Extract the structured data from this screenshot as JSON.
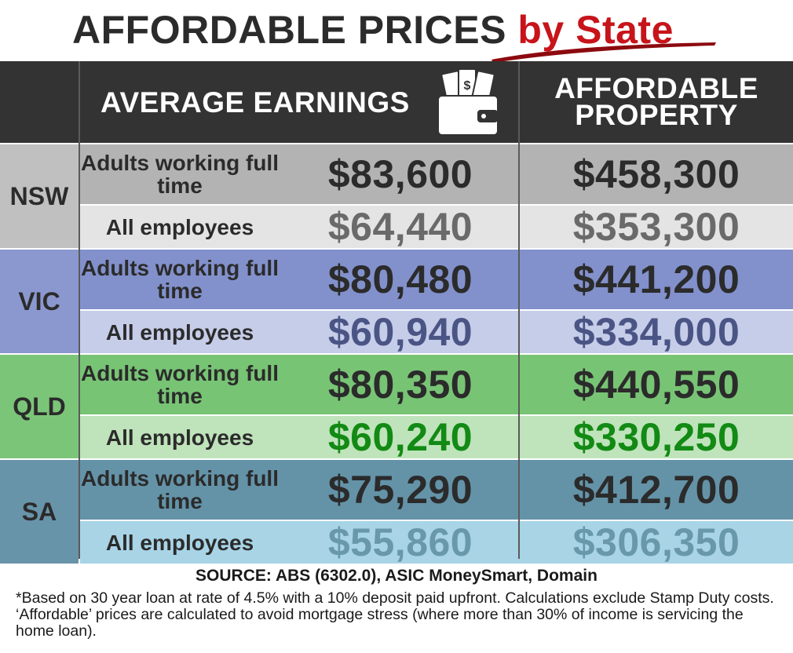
{
  "title": {
    "main": "AFFORDABLE PRICES",
    "accent": "by State"
  },
  "headers": {
    "earnings": "AVERAGE EARNINGS",
    "property": "AFFORDABLE PROPERTY"
  },
  "colors": {
    "title_text": "#2b2b2b",
    "title_accent": "#c7141a",
    "header_bg": "#333333",
    "NSW": {
      "state_bg": "#c0c0c0",
      "dark": "#b3b3b3",
      "light": "#e4e4e4",
      "dark_text": "#2b2b2b",
      "light_text": "#6a6a6a"
    },
    "VIC": {
      "state_bg": "#8b98cf",
      "dark": "#8291cc",
      "light": "#c6cde9",
      "dark_text": "#2b2b2b",
      "light_text": "#4a5585"
    },
    "QLD": {
      "state_bg": "#7bc579",
      "dark": "#78c475",
      "light": "#bfe3bb",
      "dark_text": "#2b2b2b",
      "light_text": "#128a14"
    },
    "SA": {
      "state_bg": "#6894aa",
      "dark": "#6493a8",
      "light": "#a8d4e6",
      "dark_text": "#2b2b2b",
      "light_text": "#6898aa"
    }
  },
  "chart_data": {
    "type": "table",
    "columns": [
      "AVERAGE EARNINGS",
      "AFFORDABLE PROPERTY"
    ],
    "rows": [
      {
        "state": "NSW",
        "items": [
          {
            "label": "Adults working full time",
            "earnings": "$83,600",
            "property": "$458,300"
          },
          {
            "label": "All employees",
            "earnings": "$64,440",
            "property": "$353,300"
          }
        ]
      },
      {
        "state": "VIC",
        "items": [
          {
            "label": "Adults working full time",
            "earnings": "$80,480",
            "property": "$441,200"
          },
          {
            "label": "All employees",
            "earnings": "$60,940",
            "property": "$334,000"
          }
        ]
      },
      {
        "state": "QLD",
        "items": [
          {
            "label": "Adults working full time",
            "earnings": "$80,350",
            "property": "$440,550"
          },
          {
            "label": "All employees",
            "earnings": "$60,240",
            "property": "$330,250"
          }
        ]
      },
      {
        "state": "SA",
        "items": [
          {
            "label": "Adults working full time",
            "earnings": "$75,290",
            "property": "$412,700"
          },
          {
            "label": "All employees",
            "earnings": "$55,860",
            "property": "$306,350"
          }
        ]
      }
    ]
  },
  "source": "SOURCE: ABS (6302.0), ASIC MoneySmart, Domain",
  "footnote": "*Based on 30 year loan at rate of 4.5% with a 10% deposit paid upfront. Calculations exclude Stamp Duty costs. ‘Affordable’ prices are calculated to avoid mortgage stress (where more than 30% of income is servicing the home loan)."
}
